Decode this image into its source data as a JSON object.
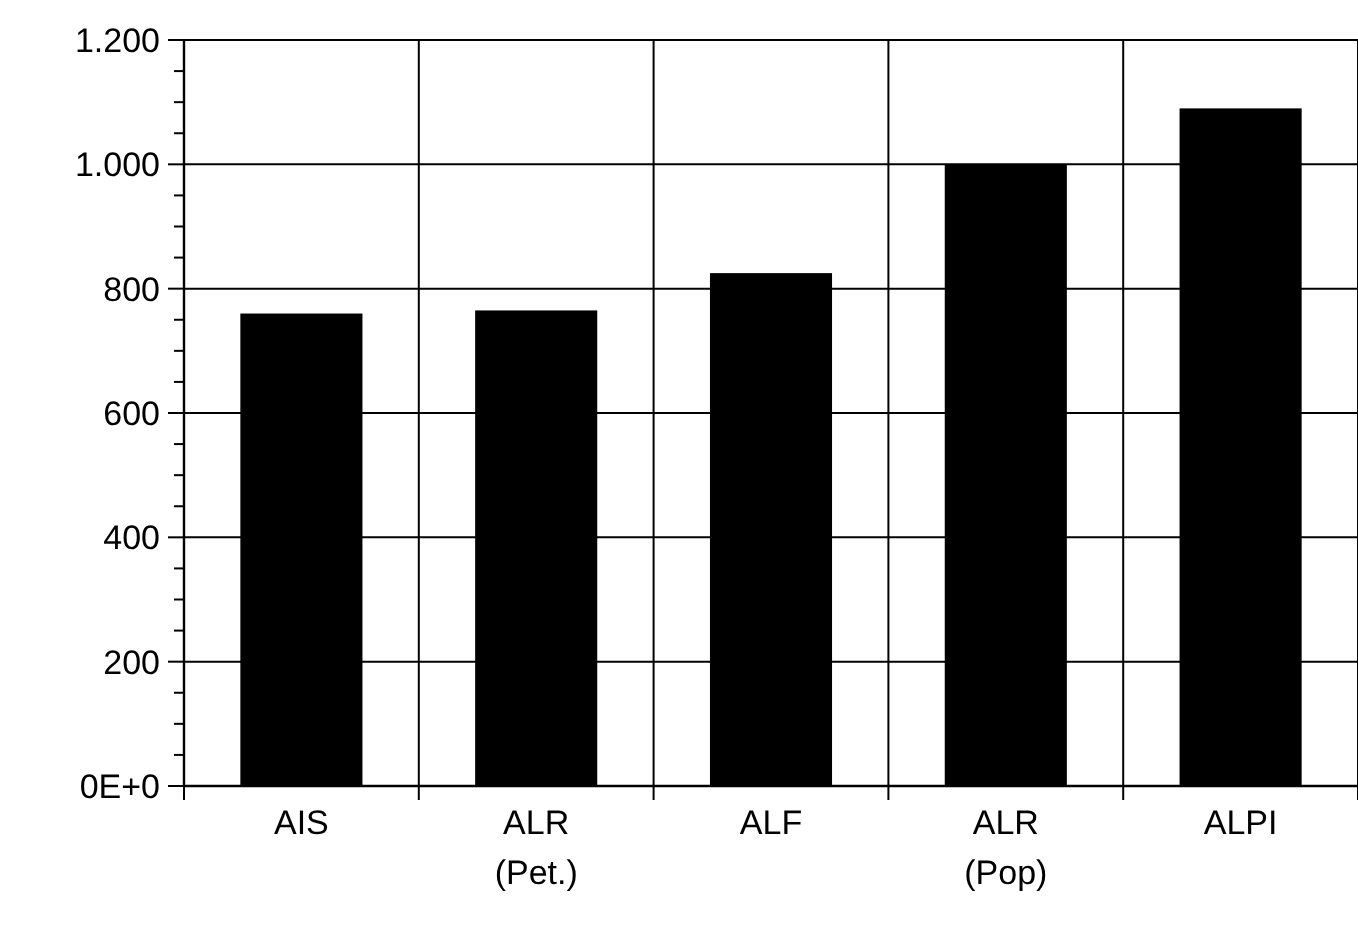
{
  "chart_data": {
    "type": "bar",
    "categories": [
      "AIS",
      "ALR\n(Pet.)",
      "ALF",
      "ALR\n(Pop)",
      "ALPI"
    ],
    "values": [
      760,
      765,
      825,
      1000,
      1090
    ],
    "color": "#000000",
    "ylim": [
      0,
      1200
    ],
    "yticks": [
      {
        "value": 0,
        "label": "0E+0"
      },
      {
        "value": 50,
        "label": null
      },
      {
        "value": 100,
        "label": null
      },
      {
        "value": 150,
        "label": null
      },
      200,
      {
        "value": 250,
        "label": null
      },
      {
        "value": 300,
        "label": null
      },
      {
        "value": 350,
        "label": null
      },
      400,
      {
        "value": 450,
        "label": null
      },
      {
        "value": 500,
        "label": null
      },
      {
        "value": 550,
        "label": null
      },
      600,
      {
        "value": 650,
        "label": null
      },
      {
        "value": 700,
        "label": null
      },
      {
        "value": 750,
        "label": null
      },
      800,
      {
        "value": 850,
        "label": null
      },
      {
        "value": 900,
        "label": null
      },
      {
        "value": 950,
        "label": null
      },
      {
        "value": 1000,
        "label": "1.000"
      },
      {
        "value": 1050,
        "label": null
      },
      {
        "value": 1100,
        "label": null
      },
      {
        "value": 1150,
        "label": null
      },
      {
        "value": 1200,
        "label": "1.200"
      }
    ],
    "grid": true
  }
}
